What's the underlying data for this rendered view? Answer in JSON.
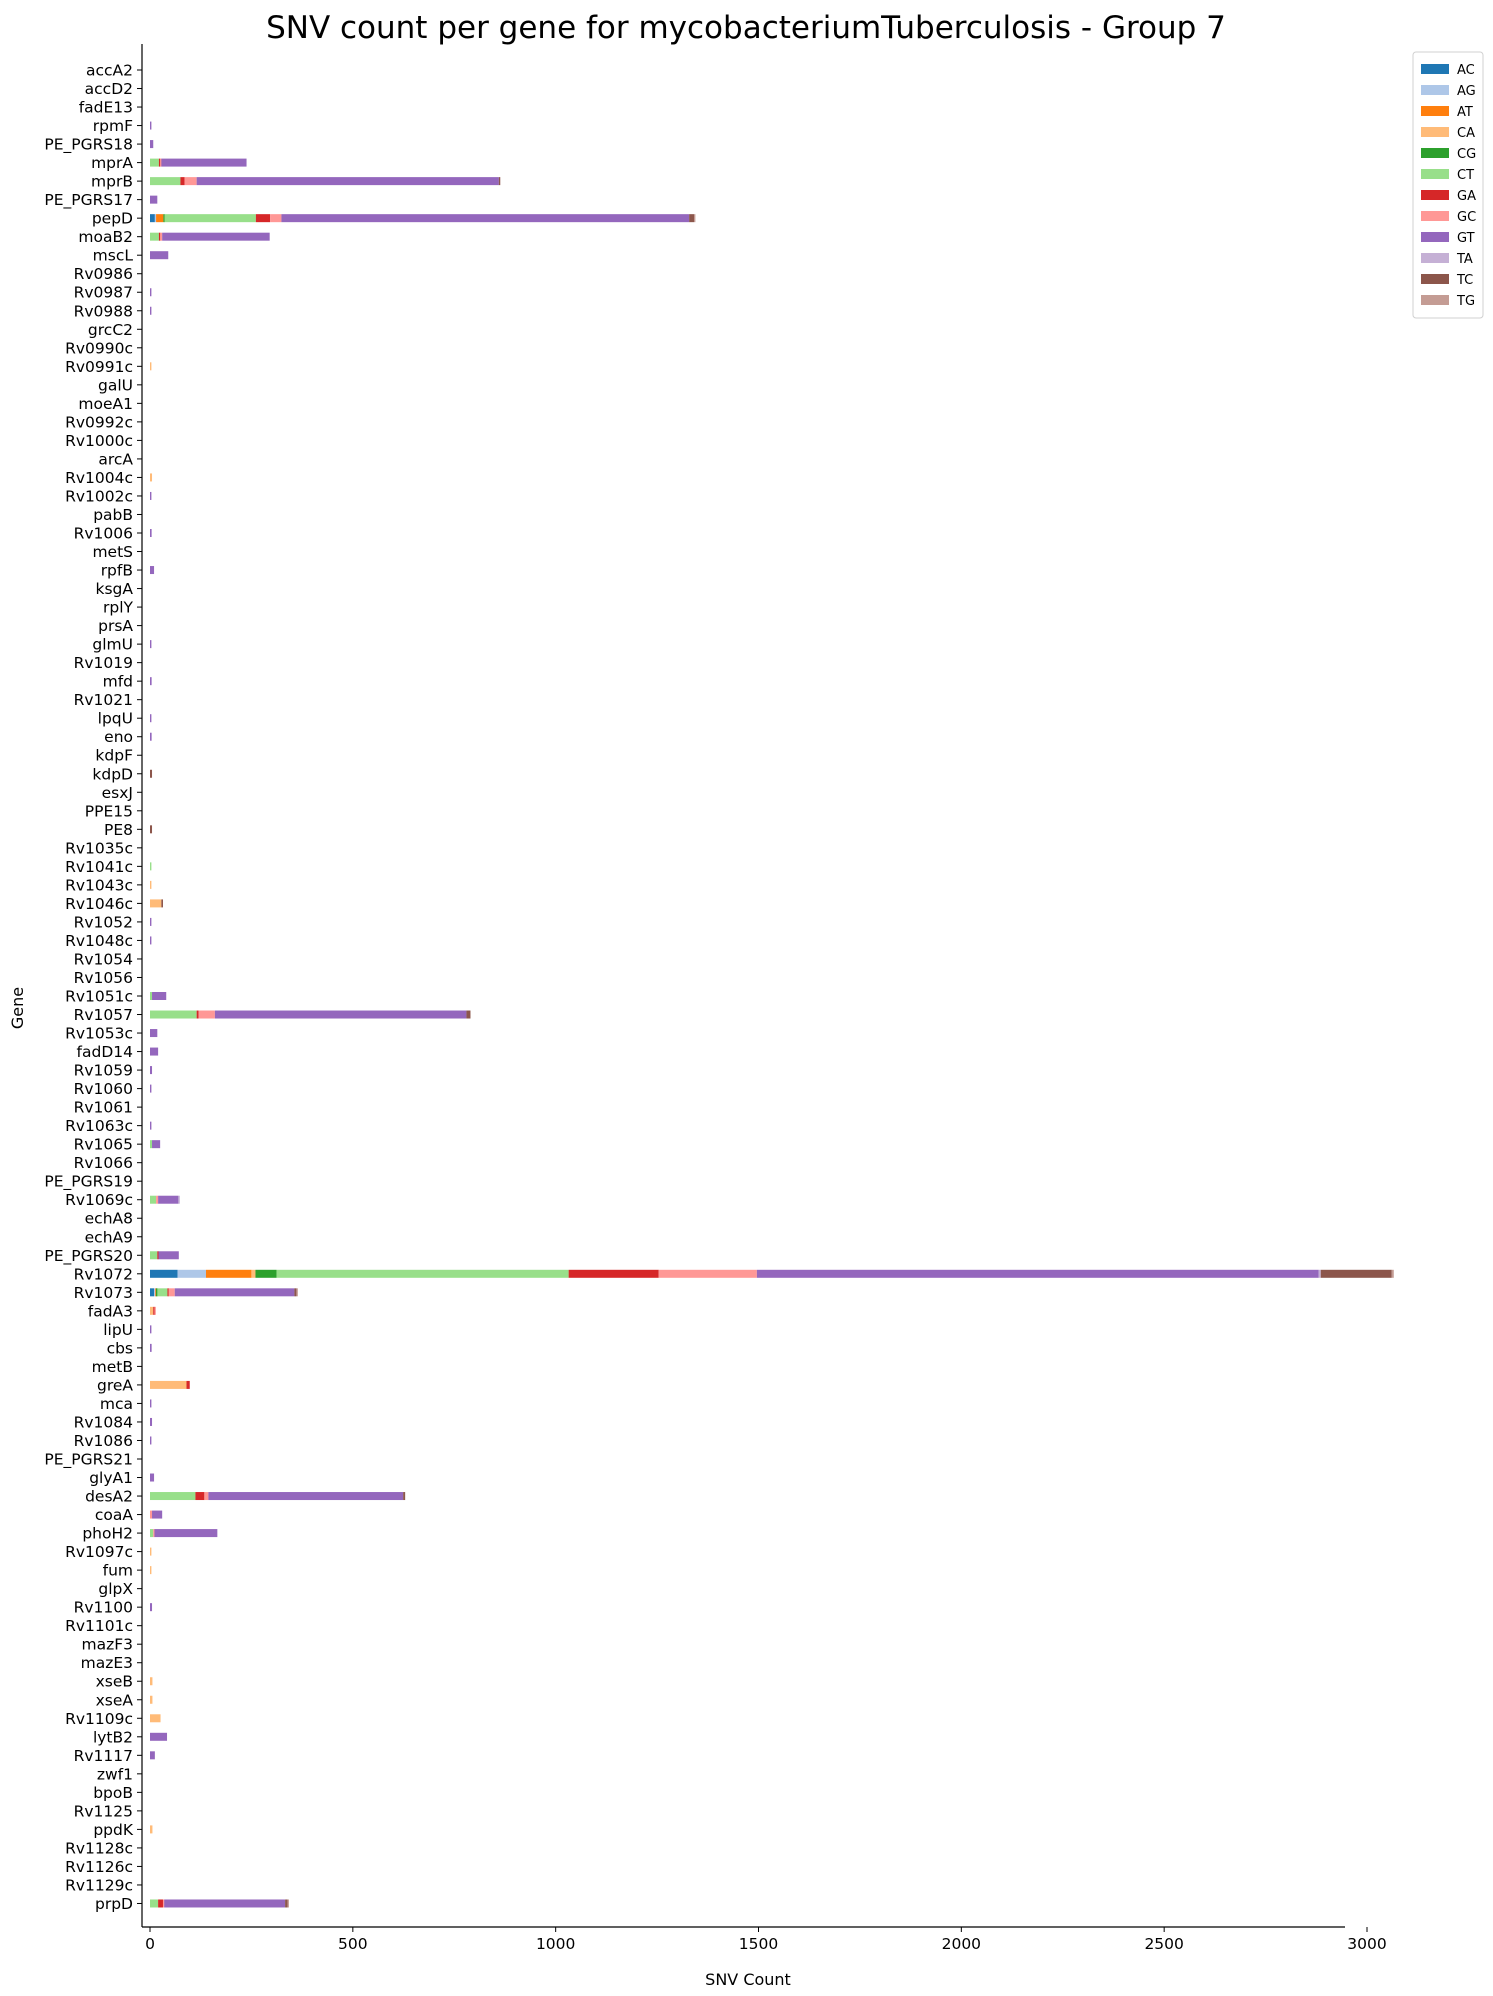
{
  "chart_data": {
    "type": "bar",
    "orientation": "horizontal",
    "stacked": true,
    "title": "SNV count per gene for mycobacteriumTuberculosis - Group 7",
    "xlabel": "SNV Count",
    "ylabel": "Gene",
    "xlim": [
      -20,
      3090
    ],
    "xticks": [
      0,
      500,
      1000,
      1500,
      2000,
      2500,
      3000
    ],
    "grid": false,
    "legend_position": "top-right",
    "categories": [
      "accA2",
      "accD2",
      "fadE13",
      "rpmF",
      "PE_PGRS18",
      "mprA",
      "mprB",
      "PE_PGRS17",
      "pepD",
      "moaB2",
      "mscL",
      "Rv0986",
      "Rv0987",
      "Rv0988",
      "grcC2",
      "Rv0990c",
      "Rv0991c",
      "galU",
      "moeA1",
      "Rv0992c",
      "Rv1000c",
      "arcA",
      "Rv1004c",
      "Rv1002c",
      "pabB",
      "Rv1006",
      "metS",
      "rpfB",
      "ksgA",
      "rplY",
      "prsA",
      "glmU",
      "Rv1019",
      "mfd",
      "Rv1021",
      "lpqU",
      "eno",
      "kdpF",
      "kdpD",
      "esxJ",
      "PPE15",
      "PE8",
      "Rv1035c",
      "Rv1041c",
      "Rv1043c",
      "Rv1046c",
      "Rv1052",
      "Rv1048c",
      "Rv1054",
      "Rv1056",
      "Rv1051c",
      "Rv1057",
      "Rv1053c",
      "fadD14",
      "Rv1059",
      "Rv1060",
      "Rv1061",
      "Rv1063c",
      "Rv1065",
      "Rv1066",
      "PE_PGRS19",
      "Rv1069c",
      "echA8",
      "echA9",
      "PE_PGRS20",
      "Rv1072",
      "Rv1073",
      "fadA3",
      "lipU",
      "cbs",
      "metB",
      "greA",
      "mca",
      "Rv1084",
      "Rv1086",
      "PE_PGRS21",
      "glyA1",
      "desA2",
      "coaA",
      "phoH2",
      "Rv1097c",
      "fum",
      "glpX",
      "Rv1100",
      "Rv1101c",
      "mazF3",
      "mazE3",
      "xseB",
      "xseA",
      "Rv1109c",
      "lytB2",
      "Rv1117",
      "zwf1",
      "bpoB",
      "Rv1125",
      "ppdK",
      "Rv1128c",
      "Rv1126c",
      "Rv1129c",
      "prpD"
    ],
    "series": [
      {
        "name": "AC",
        "color": "#1f77b4",
        "values": {
          "pepD": 12,
          "Rv1072": 68,
          "Rv1073": 10
        }
      },
      {
        "name": "AG",
        "color": "#aec7e8",
        "values": {
          "pepD": 3,
          "Rv1072": 70,
          "Rv1073": 3
        }
      },
      {
        "name": "AT",
        "color": "#ff7f0e",
        "values": {
          "pepD": 18,
          "Rv1072": 112,
          "Rv1073": 2
        }
      },
      {
        "name": "CA",
        "color": "#ffbb78",
        "values": {
          "Rv0991c": 3,
          "Rv1004c": 5,
          "Rv1043c": 3,
          "Rv1046c": 28,
          "Rv1072": 10,
          "fadA3": 8,
          "greA": 90,
          "Rv1097c": 3,
          "fum": 3,
          "xseB": 6,
          "xseA": 6,
          "Rv1109c": 26,
          "ppdK": 6
        }
      },
      {
        "name": "CG",
        "color": "#2ca02c",
        "values": {
          "pepD": 3,
          "Rv1072": 52,
          "Rv1073": 3
        }
      },
      {
        "name": "CT",
        "color": "#98df8a",
        "values": {
          "mprA": 22,
          "mprB": 75,
          "pepD": 225,
          "moaB2": 22,
          "Rv1041c": 3,
          "Rv1051c": 5,
          "Rv1057": 115,
          "Rv1065": 5,
          "Rv1069c": 15,
          "PE_PGRS20": 18,
          "Rv1072": 720,
          "Rv1073": 25,
          "desA2": 112,
          "phoH2": 8,
          "prpD": 20
        }
      },
      {
        "name": "GA",
        "color": "#d62728",
        "values": {
          "mprA": 3,
          "mprB": 10,
          "pepD": 35,
          "moaB2": 3,
          "Rv1057": 5,
          "PE_PGRS20": 3,
          "Rv1072": 222,
          "Rv1073": 3,
          "fadA3": 3,
          "greA": 8,
          "desA2": 22,
          "prpD": 12
        }
      },
      {
        "name": "GC",
        "color": "#ff9896",
        "values": {
          "mprA": 3,
          "mprB": 30,
          "pepD": 28,
          "moaB2": 5,
          "Rv1057": 40,
          "Rv1069c": 5,
          "Rv1072": 242,
          "Rv1073": 15,
          "fadA3": 3,
          "desA2": 10,
          "coaA": 5,
          "phoH2": 3,
          "prpD": 3
        }
      },
      {
        "name": "GT",
        "color": "#9467bd",
        "values": {
          "rpmF": 2,
          "PE_PGRS18": 8,
          "mprA": 210,
          "mprB": 745,
          "PE_PGRS17": 18,
          "pepD": 1005,
          "moaB2": 265,
          "mscL": 45,
          "Rv0987": 2,
          "Rv0988": 2,
          "Rv1002c": 3,
          "Rv1006": 4,
          "rpfB": 10,
          "glmU": 3,
          "mfd": 4,
          "lpqU": 2,
          "eno": 4,
          "Rv1052": 2,
          "Rv1048c": 2,
          "Rv1051c": 35,
          "Rv1057": 620,
          "Rv1053c": 18,
          "fadD14": 20,
          "Rv1059": 5,
          "Rv1060": 3,
          "Rv1063c": 2,
          "Rv1065": 20,
          "Rv1069c": 50,
          "PE_PGRS20": 50,
          "Rv1072": 1385,
          "Rv1073": 295,
          "lipU": 3,
          "cbs": 4,
          "mca": 3,
          "Rv1084": 5,
          "Rv1086": 3,
          "glyA1": 10,
          "desA2": 480,
          "coaA": 25,
          "phoH2": 155,
          "Rv1100": 5,
          "lytB2": 42,
          "Rv1117": 12,
          "prpD": 298
        }
      },
      {
        "name": "TA",
        "color": "#c5b0d5",
        "values": {
          "Rv1069c": 3,
          "Rv1072": 5
        }
      },
      {
        "name": "TC",
        "color": "#8c564b",
        "values": {
          "mprB": 2,
          "pepD": 12,
          "kdpD": 5,
          "PE8": 5,
          "Rv1046c": 4,
          "Rv1057": 10,
          "Rv1072": 175,
          "Rv1073": 5,
          "desA2": 5,
          "prpD": 6
        }
      },
      {
        "name": "TG",
        "color": "#c49c94",
        "values": {
          "pepD": 3,
          "Rv1072": 5,
          "Rv1073": 3,
          "prpD": 3
        }
      }
    ]
  }
}
